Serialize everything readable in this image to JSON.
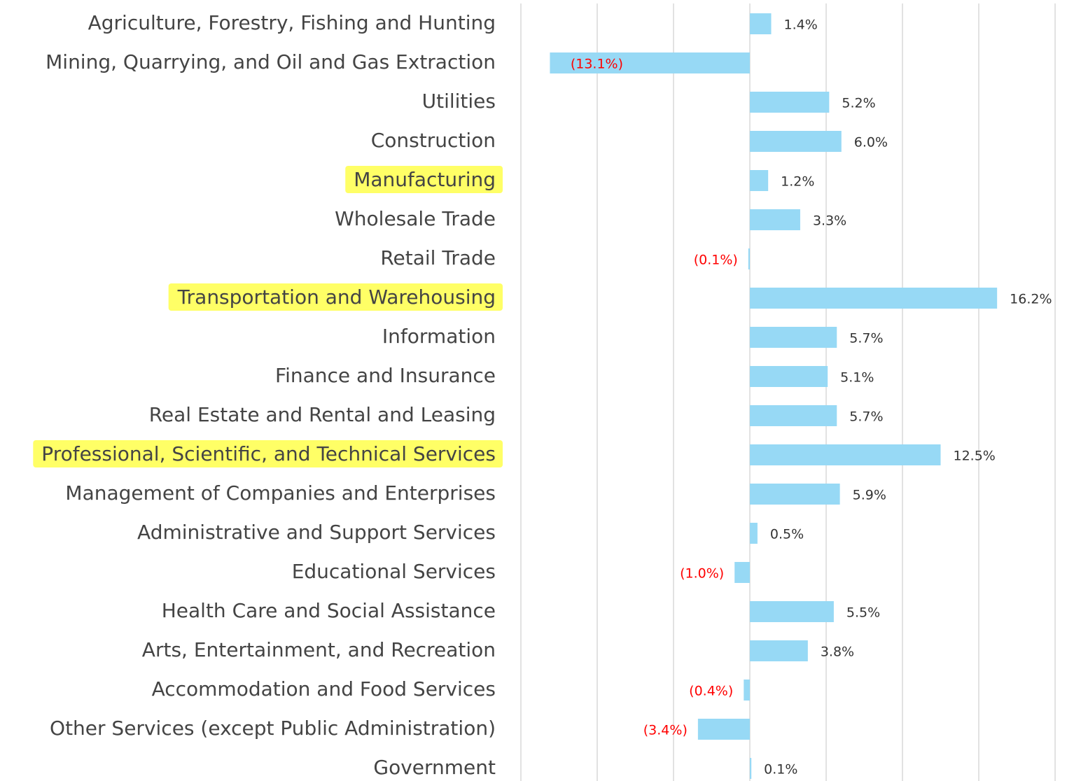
{
  "chart_data": {
    "type": "hbar",
    "categories": [
      "Agriculture, Forestry, Fishing and Hunting",
      "Mining, Quarrying, and Oil and Gas Extraction",
      "Utilities",
      "Construction",
      "Manufacturing",
      "Wholesale Trade",
      "Retail Trade",
      "Transportation and Warehousing",
      "Information",
      "Finance and Insurance",
      "Real Estate and Rental and Leasing",
      "Professional, Scientific, and Technical Services",
      "Management of Companies and Enterprises",
      "Administrative and Support  Services",
      "Educational Services",
      "Health Care and Social Assistance",
      "Arts, Entertainment, and Recreation",
      "Accommodation and Food Services",
      "Other Services (except Public Administration)",
      "Government"
    ],
    "values": [
      1.4,
      -13.1,
      5.2,
      6.0,
      1.2,
      3.3,
      -0.1,
      16.2,
      5.7,
      5.1,
      5.7,
      12.5,
      5.9,
      0.5,
      -1.0,
      5.5,
      3.8,
      -0.4,
      -3.4,
      0.1
    ],
    "value_labels": [
      "1.4%",
      "(13.1%)",
      "5.2%",
      "6.0%",
      "1.2%",
      "3.3%",
      "(0.1%)",
      "16.2%",
      "5.7%",
      "5.1%",
      "5.7%",
      "12.5%",
      "5.9%",
      "0.5%",
      "(1.0%)",
      "5.5%",
      "3.8%",
      "(0.4%)",
      "(3.4%)",
      "0.1%"
    ],
    "color": "#97d9f5",
    "negative_label_color": "#ff0000",
    "highlighted": [
      4,
      7,
      11
    ],
    "highlight_color": "#ffff66",
    "xlim": [
      -15,
      20
    ],
    "xticks": [
      -15,
      -10,
      -5,
      0,
      5,
      10,
      15,
      20
    ],
    "grid": true
  }
}
